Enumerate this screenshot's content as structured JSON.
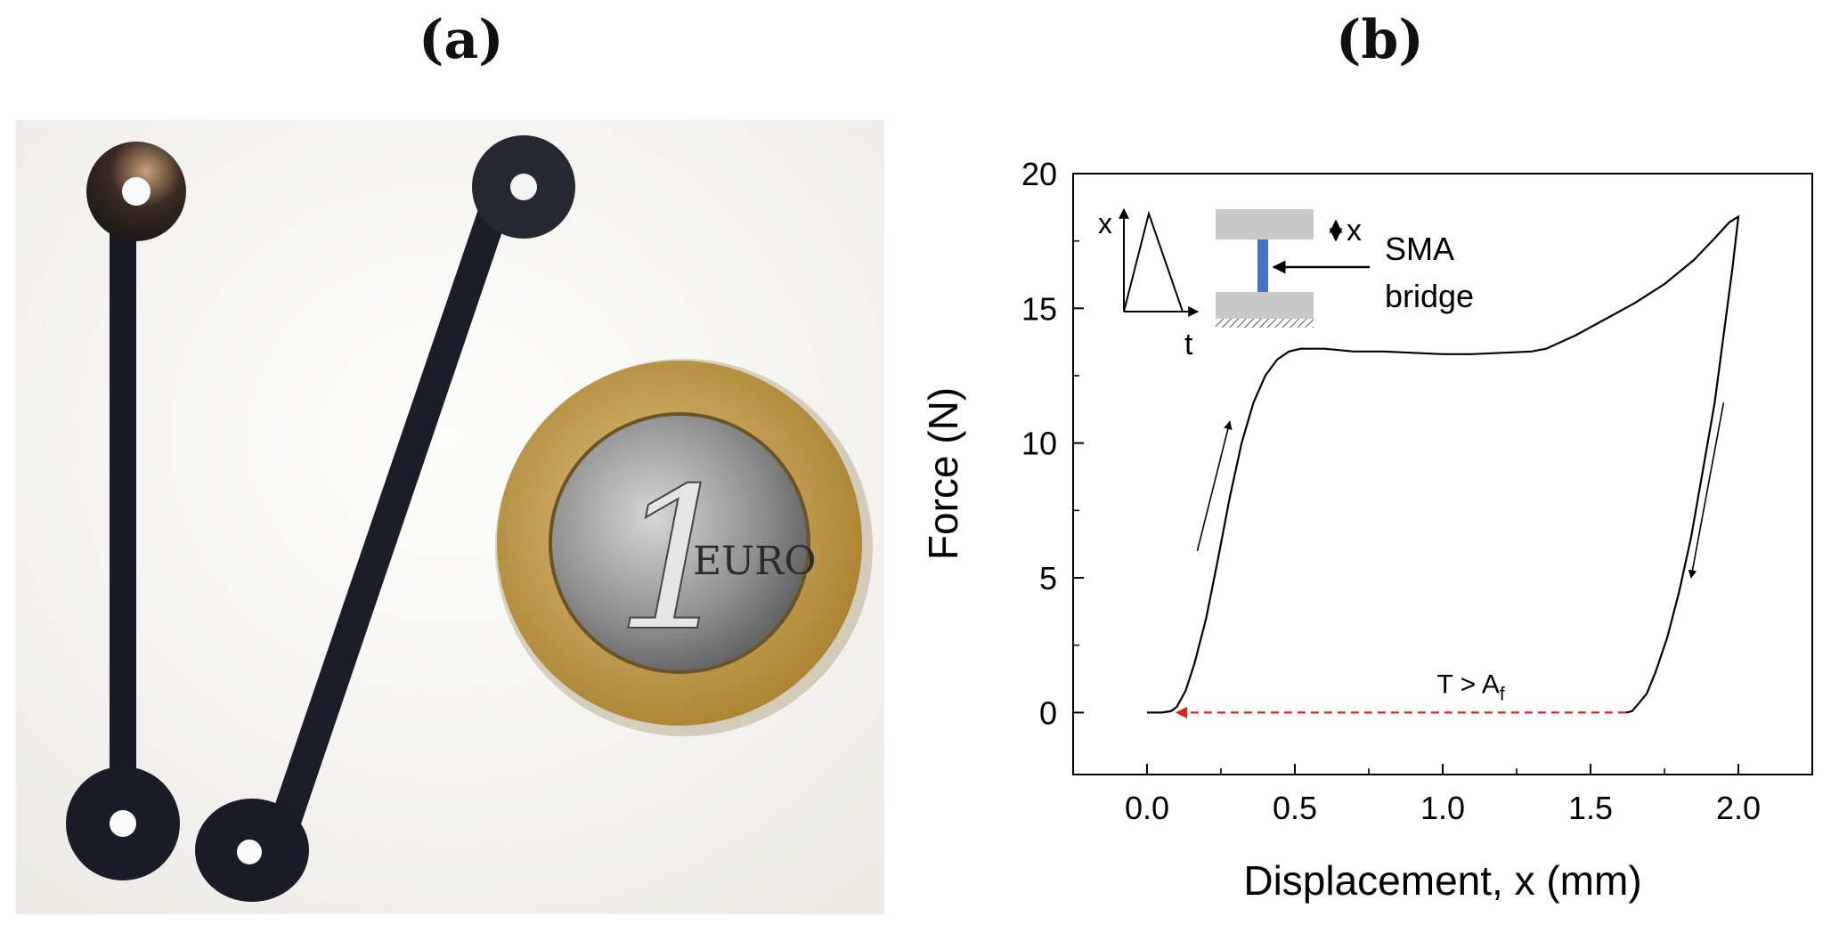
{
  "panels": {
    "a": {
      "label": "(a)"
    },
    "b": {
      "label": "(b)"
    }
  },
  "photo": {
    "coin": {
      "numeral": "1",
      "text": "EURO"
    }
  },
  "inset": {
    "x_axis_label": "t",
    "y_axis_label": "x",
    "displacement_label": "x",
    "bridge_label_line1": "SMA",
    "bridge_label_line2": "bridge",
    "bridge_color": "#4472c4"
  },
  "chart_data": {
    "type": "line",
    "xlabel": "Displacement, x (mm)",
    "ylabel": "Force (N)",
    "xlim": [
      -0.25,
      2.25
    ],
    "ylim": [
      -2.3,
      20
    ],
    "xticks": [
      0.0,
      0.5,
      1.0,
      1.5,
      2.0
    ],
    "xtick_labels": [
      "0.0",
      "0.5",
      "1.0",
      "1.5",
      "2.0"
    ],
    "yticks": [
      0,
      5,
      10,
      15,
      20
    ],
    "ytick_labels": [
      "0",
      "5",
      "10",
      "15",
      "20"
    ],
    "grid": false,
    "line_color": "#000000",
    "series": [
      {
        "x": [
          0.0,
          0.05,
          0.08,
          0.1,
          0.13,
          0.16,
          0.2,
          0.24,
          0.28,
          0.32,
          0.36,
          0.4,
          0.44,
          0.48,
          0.52,
          0.56,
          0.6,
          0.7,
          0.8,
          0.9,
          1.0,
          1.1,
          1.2,
          1.3,
          1.35,
          1.45,
          1.55,
          1.65,
          1.75,
          1.85,
          1.92,
          1.97,
          2.0,
          1.98,
          1.95,
          1.92,
          1.88,
          1.84,
          1.8,
          1.76,
          1.72,
          1.69,
          1.66,
          1.64,
          1.62
        ],
        "y": [
          0.0,
          0.0,
          0.05,
          0.2,
          0.8,
          1.8,
          3.5,
          5.7,
          8.0,
          10.0,
          11.5,
          12.5,
          13.1,
          13.4,
          13.5,
          13.5,
          13.5,
          13.4,
          13.4,
          13.35,
          13.3,
          13.3,
          13.35,
          13.4,
          13.5,
          14.0,
          14.6,
          15.2,
          15.9,
          16.8,
          17.6,
          18.2,
          18.4,
          16.5,
          14.0,
          11.5,
          9.0,
          6.5,
          4.5,
          2.8,
          1.5,
          0.7,
          0.3,
          0.05,
          0.0
        ]
      }
    ],
    "annotations": [
      {
        "text": "T > A",
        "subscript": "f",
        "x_from": 1.62,
        "x_to": 0.1,
        "y": 0,
        "color": "#e02020",
        "style": "dashed-arrow"
      }
    ],
    "direction_arrows": [
      {
        "from": [
          0.17,
          6.0
        ],
        "to": [
          0.28,
          10.8
        ]
      },
      {
        "from": [
          1.95,
          11.5
        ],
        "to": [
          1.84,
          5.0
        ]
      }
    ]
  }
}
